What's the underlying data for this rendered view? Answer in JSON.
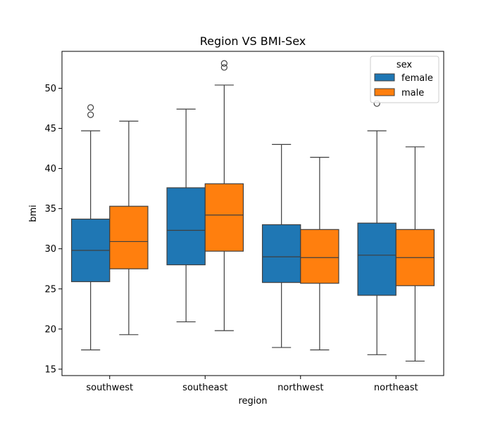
{
  "chart_data": {
    "type": "box",
    "title": "Region VS BMI-Sex",
    "xlabel": "region",
    "ylabel": "bmi",
    "ylim": [
      14.2,
      54.6
    ],
    "yticks": [
      15,
      20,
      25,
      30,
      35,
      40,
      45,
      50
    ],
    "categories": [
      "southwest",
      "southeast",
      "northwest",
      "northeast"
    ],
    "grid": false,
    "legend": {
      "title": "sex",
      "placement": "top-right"
    },
    "series": [
      {
        "name": "female",
        "color": "#1f77b4",
        "boxes": [
          {
            "whisker_low": 17.4,
            "q1": 25.9,
            "median": 29.8,
            "q3": 33.7,
            "whisker_high": 44.7,
            "outliers": [
              46.7,
              47.6
            ]
          },
          {
            "whisker_low": 20.9,
            "q1": 28.0,
            "median": 32.3,
            "q3": 37.6,
            "whisker_high": 47.4,
            "outliers": []
          },
          {
            "whisker_low": 17.7,
            "q1": 25.8,
            "median": 29.0,
            "q3": 33.0,
            "whisker_high": 43.0,
            "outliers": []
          },
          {
            "whisker_low": 16.8,
            "q1": 24.2,
            "median": 29.2,
            "q3": 33.2,
            "whisker_high": 44.7,
            "outliers": [
              48.1
            ]
          }
        ]
      },
      {
        "name": "male",
        "color": "#ff7f0e",
        "boxes": [
          {
            "whisker_low": 19.3,
            "q1": 27.5,
            "median": 30.9,
            "q3": 35.3,
            "whisker_high": 45.9,
            "outliers": []
          },
          {
            "whisker_low": 19.8,
            "q1": 29.7,
            "median": 34.2,
            "q3": 38.1,
            "whisker_high": 50.4,
            "outliers": [
              52.6,
              53.1
            ]
          },
          {
            "whisker_low": 17.4,
            "q1": 25.7,
            "median": 28.9,
            "q3": 32.4,
            "whisker_high": 41.4,
            "outliers": []
          },
          {
            "whisker_low": 16.0,
            "q1": 25.4,
            "median": 28.9,
            "q3": 32.4,
            "whisker_high": 42.7,
            "outliers": []
          }
        ]
      }
    ]
  }
}
